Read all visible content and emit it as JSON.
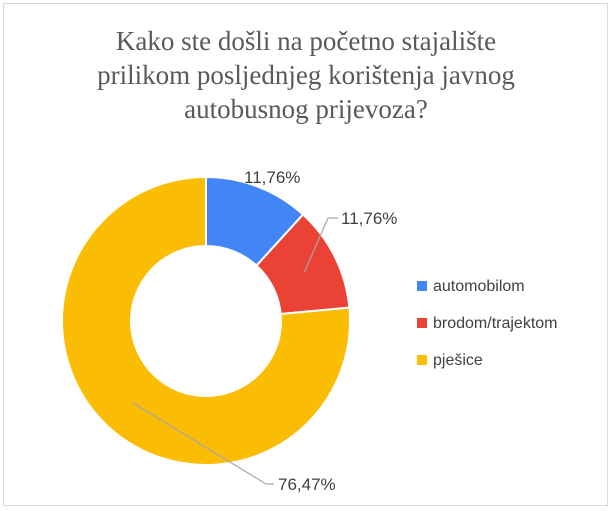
{
  "chart_data": {
    "type": "pie",
    "variant": "doughnut",
    "title_lines": [
      "Kako ste došli na početno stajalište",
      "prilikom posljednjeg korištenja javnog",
      "autobusnog prijevoza?"
    ],
    "categories": [
      "automobilom",
      "brodom/trajektom",
      "pješice"
    ],
    "values": [
      11.76,
      11.76,
      76.47
    ],
    "value_labels": [
      "11,76%",
      "11,76%",
      "76,47%"
    ],
    "colors": [
      "#4285f4",
      "#ea4335",
      "#fbbc04"
    ],
    "legend_position": "right"
  }
}
